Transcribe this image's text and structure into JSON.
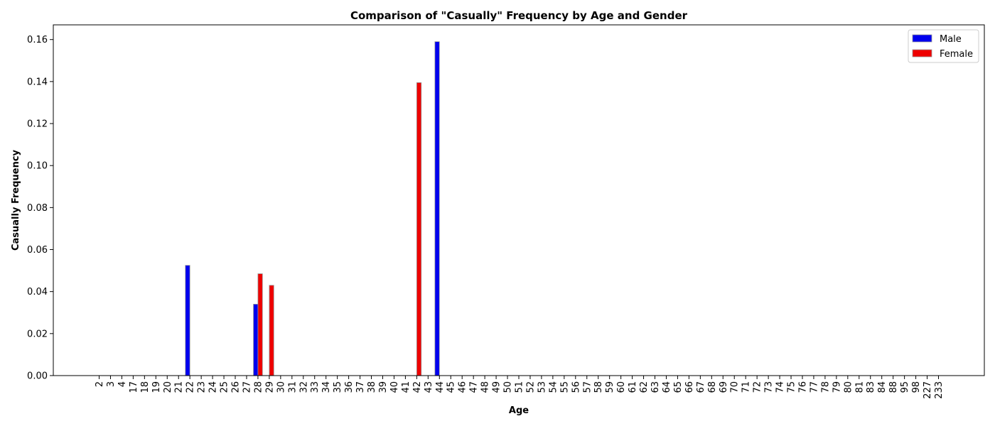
{
  "chart_data": {
    "type": "bar",
    "title": "Comparison of \"Casually\" Frequency by Age and Gender",
    "xlabel": "Age",
    "ylabel": "Casually Frequency",
    "categories": [
      "2",
      "3",
      "4",
      "17",
      "18",
      "19",
      "20",
      "21",
      "22",
      "23",
      "24",
      "25",
      "26",
      "27",
      "28",
      "29",
      "30",
      "31",
      "32",
      "33",
      "34",
      "35",
      "36",
      "37",
      "38",
      "39",
      "40",
      "41",
      "42",
      "43",
      "44",
      "45",
      "46",
      "47",
      "48",
      "49",
      "50",
      "51",
      "52",
      "53",
      "54",
      "55",
      "56",
      "57",
      "58",
      "59",
      "60",
      "61",
      "62",
      "63",
      "64",
      "65",
      "66",
      "67",
      "68",
      "69",
      "70",
      "71",
      "72",
      "73",
      "74",
      "75",
      "76",
      "77",
      "78",
      "79",
      "80",
      "81",
      "83",
      "84",
      "88",
      "95",
      "98",
      "227",
      "233"
    ],
    "ylim": [
      0,
      0.167
    ],
    "yticks": [
      "0.00",
      "0.02",
      "0.04",
      "0.06",
      "0.08",
      "0.10",
      "0.12",
      "0.14",
      "0.16"
    ],
    "legend_position": "top-right",
    "grid": false,
    "series": [
      {
        "name": "Male",
        "color": "#0000ee",
        "values": [
          0,
          0,
          0,
          0,
          0,
          0,
          0,
          0,
          0.0525,
          0,
          0,
          0,
          0,
          0,
          0.034,
          0,
          0,
          0,
          0,
          0,
          0,
          0,
          0,
          0,
          0,
          0,
          0,
          0,
          0,
          0,
          0.159,
          0,
          0,
          0,
          0,
          0,
          0,
          0,
          0,
          0,
          0,
          0,
          0,
          0,
          0,
          0,
          0,
          0,
          0,
          0,
          0,
          0,
          0,
          0,
          0,
          0,
          0,
          0,
          0,
          0,
          0,
          0,
          0,
          0,
          0,
          0,
          0,
          0,
          0,
          0,
          0,
          0,
          0,
          0,
          0
        ]
      },
      {
        "name": "Female",
        "color": "#ee0000",
        "values": [
          0,
          0,
          0,
          0,
          0,
          0,
          0,
          0,
          0,
          0,
          0,
          0,
          0,
          0,
          0.0485,
          0.043,
          0,
          0,
          0,
          0,
          0,
          0,
          0,
          0,
          0,
          0,
          0,
          0,
          0.1395,
          0,
          0,
          0,
          0,
          0,
          0,
          0,
          0,
          0,
          0,
          0,
          0,
          0,
          0,
          0,
          0,
          0,
          0,
          0,
          0,
          0,
          0,
          0,
          0,
          0,
          0,
          0,
          0,
          0,
          0,
          0,
          0,
          0,
          0,
          0,
          0,
          0,
          0,
          0,
          0,
          0,
          0,
          0,
          0,
          0,
          0
        ]
      }
    ]
  }
}
